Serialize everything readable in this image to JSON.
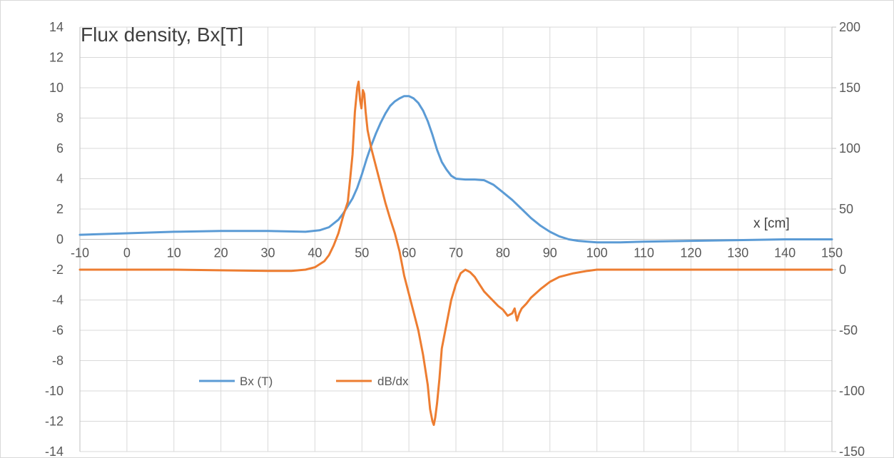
{
  "chart_data": {
    "type": "line",
    "title": "Flux density, Bx[T]",
    "xlabel": "x [cm]",
    "xlim": [
      -10,
      150
    ],
    "x_ticks": [
      -10,
      0,
      10,
      20,
      30,
      40,
      50,
      60,
      70,
      80,
      90,
      100,
      110,
      120,
      130,
      140,
      150
    ],
    "ylim_left": [
      -14,
      14
    ],
    "y_left_ticks": [
      -14,
      -12,
      -10,
      -8,
      -6,
      -4,
      -2,
      0,
      2,
      4,
      6,
      8,
      10,
      12,
      14
    ],
    "ylim_right": [
      -150,
      200
    ],
    "y_right_ticks": [
      -150,
      -100,
      -50,
      0,
      50,
      100,
      150,
      200
    ],
    "grid": true,
    "legend": [
      "Bx (T)",
      "dB/dx"
    ],
    "series": [
      {
        "name": "Bx (T)",
        "axis": "left",
        "color": "#5b9bd5",
        "x": [
          -10,
          0,
          10,
          20,
          30,
          38,
          41,
          43,
          45,
          46,
          47,
          48,
          49,
          50,
          51,
          52,
          53,
          54,
          55,
          56,
          57,
          58,
          59,
          60,
          61,
          62,
          63,
          64,
          65,
          66,
          67,
          68,
          69,
          70,
          72,
          74,
          76,
          78,
          80,
          82,
          84,
          86,
          88,
          90,
          92,
          94,
          96,
          98,
          100,
          105,
          110,
          120,
          130,
          140,
          150
        ],
        "y": [
          0.3,
          0.4,
          0.5,
          0.55,
          0.55,
          0.5,
          0.6,
          0.8,
          1.3,
          1.7,
          2.2,
          2.7,
          3.4,
          4.3,
          5.3,
          6.2,
          7.0,
          7.7,
          8.3,
          8.8,
          9.1,
          9.3,
          9.45,
          9.45,
          9.3,
          9.0,
          8.5,
          7.8,
          6.9,
          5.9,
          5.1,
          4.6,
          4.2,
          4.0,
          3.95,
          3.95,
          3.9,
          3.6,
          3.1,
          2.6,
          2.0,
          1.4,
          0.9,
          0.5,
          0.2,
          0.0,
          -0.1,
          -0.15,
          -0.2,
          -0.2,
          -0.15,
          -0.1,
          -0.05,
          0.0,
          0.0
        ]
      },
      {
        "name": "dB/dx",
        "axis": "right",
        "color": "#ed7d31",
        "x": [
          -10,
          0,
          10,
          20,
          30,
          35,
          38,
          40,
          42,
          43,
          44,
          45,
          46,
          47,
          47.5,
          48,
          48.5,
          49,
          49.3,
          49.6,
          49.9,
          50.2,
          50.5,
          50.8,
          51.2,
          52,
          53,
          54,
          55,
          56,
          57,
          58,
          59,
          60,
          61,
          62,
          63,
          64,
          64.5,
          65,
          65.3,
          65.6,
          66,
          66.5,
          67,
          68,
          69,
          70,
          71,
          72,
          73,
          74,
          75,
          76,
          77,
          78,
          79,
          80,
          81,
          82,
          82.5,
          83,
          83.5,
          84,
          85,
          86,
          88,
          90,
          92,
          95,
          98,
          100,
          105,
          110,
          120,
          130,
          140,
          150
        ],
        "y": [
          0,
          0,
          0,
          -0.5,
          -1,
          -1,
          0,
          2,
          7,
          12,
          20,
          30,
          44,
          56,
          75,
          95,
          130,
          150,
          155,
          140,
          133,
          148,
          145,
          130,
          115,
          100,
          85,
          70,
          55,
          42,
          30,
          15,
          -5,
          -20,
          -35,
          -50,
          -70,
          -95,
          -115,
          -125,
          -128,
          -122,
          -110,
          -90,
          -65,
          -45,
          -25,
          -12,
          -3,
          0,
          -2,
          -6,
          -12,
          -18,
          -22,
          -26,
          -30,
          -33,
          -38,
          -36,
          -32,
          -42,
          -36,
          -32,
          -28,
          -23,
          -16,
          -10,
          -6,
          -3,
          -1,
          0,
          0,
          0,
          0,
          0,
          0,
          0
        ]
      }
    ]
  }
}
